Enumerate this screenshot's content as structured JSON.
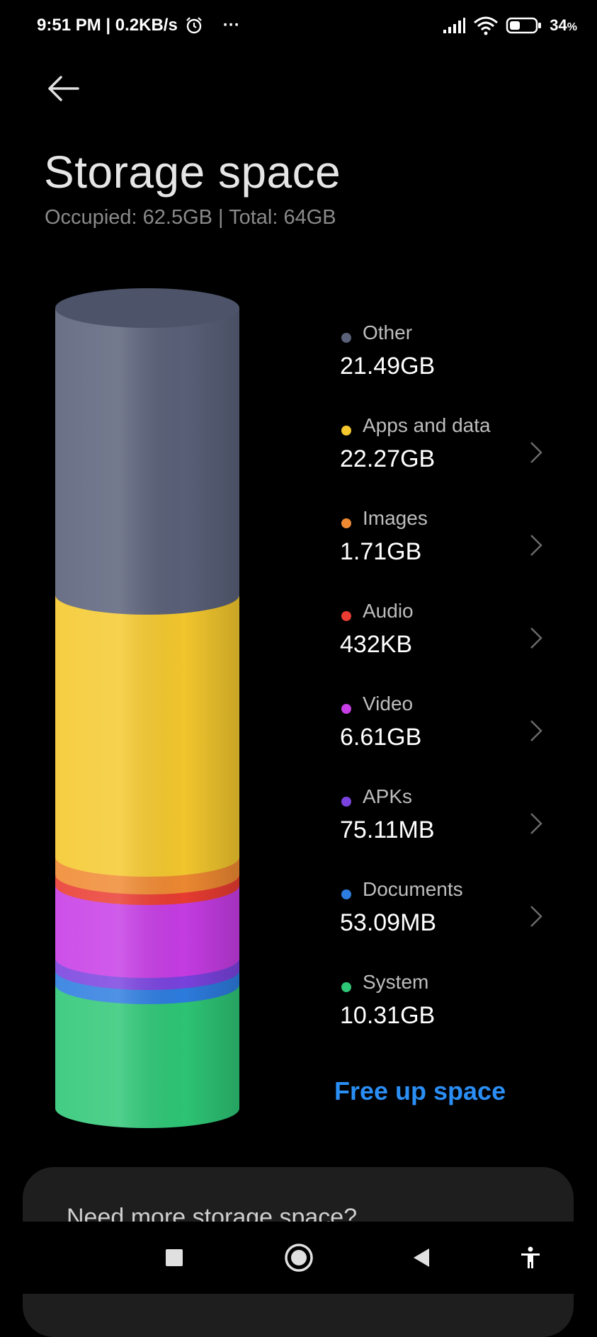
{
  "status_bar": {
    "time": "9:51 PM | 0.2KB/s",
    "more": "···",
    "battery": "34",
    "battery_unit": "%"
  },
  "header": {
    "title": "Storage space",
    "subtitle": "Occupied: 62.5GB | Total: 64GB"
  },
  "storage": {
    "items": [
      {
        "label": "Other",
        "value": "21.49GB",
        "color": "#5a6179"
      },
      {
        "label": "Apps and data",
        "value": "22.27GB",
        "color": "#f5c92e"
      },
      {
        "label": "Images",
        "value": "1.71GB",
        "color": "#f08a32"
      },
      {
        "label": "Audio",
        "value": "432KB",
        "color": "#ea3c32"
      },
      {
        "label": "Video",
        "value": "6.61GB",
        "color": "#c73de6"
      },
      {
        "label": "APKs",
        "value": "75.11MB",
        "color": "#7a43e0"
      },
      {
        "label": "Documents",
        "value": "53.09MB",
        "color": "#2d7de0"
      },
      {
        "label": "System",
        "value": "10.31GB",
        "color": "#2ec776"
      }
    ]
  },
  "actions": {
    "free_up": "Free up space"
  },
  "card": {
    "text": "Need more storage space?"
  },
  "colors": {
    "accent": "#2a8ef5",
    "background": "#000000"
  },
  "nav": {
    "recents_icon": "square-icon",
    "home_icon": "circle-icon",
    "back_icon": "triangle-back-icon",
    "accessibility_icon": "accessibility-icon"
  }
}
